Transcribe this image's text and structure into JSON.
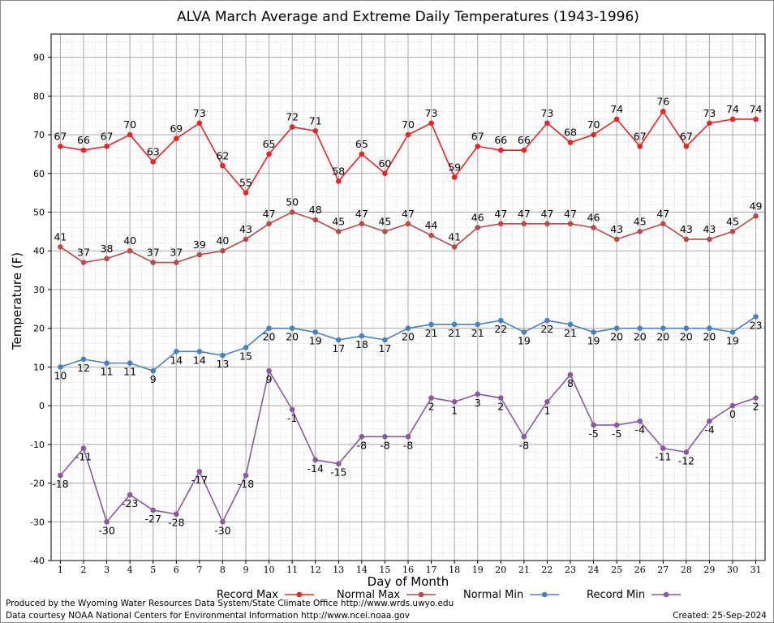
{
  "chart_data": {
    "type": "line",
    "title": "ALVA March Average and Extreme Daily Temperatures (1943-1996)",
    "xlabel": "Day of Month",
    "ylabel": "Temperature (F)",
    "ylim": [
      -40,
      96
    ],
    "yticks": [
      -40,
      -30,
      -20,
      -10,
      0,
      10,
      20,
      30,
      40,
      50,
      60,
      70,
      80,
      90
    ],
    "xlim": [
      0.6,
      31.4
    ],
    "x": [
      1,
      2,
      3,
      4,
      5,
      6,
      7,
      8,
      9,
      10,
      11,
      12,
      13,
      14,
      15,
      16,
      17,
      18,
      19,
      20,
      21,
      22,
      23,
      24,
      25,
      26,
      27,
      28,
      29,
      30,
      31
    ],
    "grid": true,
    "legend_position": "bottom",
    "series": [
      {
        "name": "Record Max",
        "color": "#ee2222",
        "label_pos": "above",
        "values": [
          67,
          66,
          67,
          70,
          63,
          69,
          73,
          62,
          55,
          65,
          72,
          71,
          58,
          65,
          60,
          70,
          73,
          59,
          67,
          66,
          66,
          73,
          68,
          70,
          74,
          67,
          76,
          67,
          73,
          74,
          74
        ]
      },
      {
        "name": "Normal Max",
        "color": "#b84a4a",
        "label_pos": "above",
        "values": [
          41,
          37,
          38,
          40,
          37,
          37,
          39,
          40,
          43,
          47,
          50,
          48,
          45,
          47,
          45,
          47,
          44,
          41,
          46,
          47,
          47,
          47,
          47,
          46,
          43,
          45,
          47,
          43,
          43,
          45,
          49
        ]
      },
      {
        "name": "Normal Min",
        "color": "#4a80c0",
        "label_pos": "below",
        "values": [
          10,
          12,
          11,
          11,
          9,
          14,
          14,
          13,
          15,
          20,
          20,
          19,
          17,
          18,
          17,
          20,
          21,
          21,
          21,
          22,
          19,
          22,
          21,
          19,
          20,
          20,
          20,
          20,
          20,
          19,
          23
        ]
      },
      {
        "name": "Record Min",
        "color": "#8a5aa0",
        "label_pos": "below",
        "values": [
          -18,
          -11,
          -30,
          -23,
          -27,
          -28,
          -17,
          -30,
          -18,
          9,
          -1,
          -14,
          -15,
          -8,
          -8,
          -8,
          2,
          1,
          3,
          2,
          -8,
          1,
          8,
          -5,
          -5,
          -4,
          -11,
          -12,
          -4,
          0,
          2
        ]
      }
    ]
  },
  "footer": {
    "produced_by": "Produced by the Wyoming Water Resources Data System/State Climate Office http://www.wrds.uwyo.edu",
    "data_courtesy": "Data courtesy NOAA National Centers for Environmental Information http://www.ncei.noaa.gov",
    "created": "Created:  25-Sep-2024"
  }
}
